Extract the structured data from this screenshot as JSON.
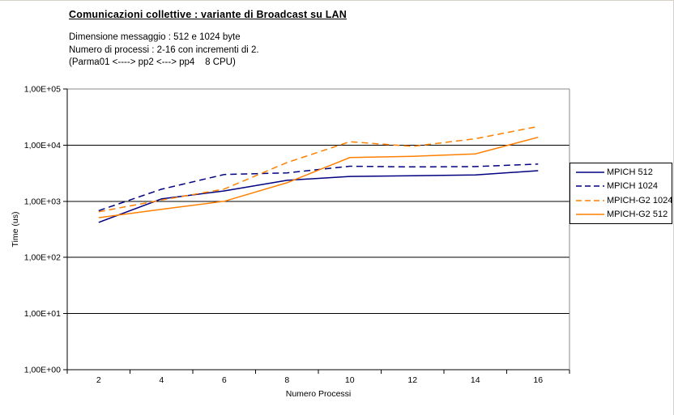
{
  "header": {
    "title": "Comunicazioni collettive : variante di Broadcast su LAN",
    "line1": "Dimensione messaggio : 512 e 1024 byte",
    "line2": "Numero di processi : 2-16 con incrementi di 2.",
    "line3": "(Parma01 <----> pp2 <---> pp4    8 CPU)"
  },
  "chart_data": {
    "type": "line",
    "title": "",
    "xlabel": "Numero Processi",
    "ylabel": "Time (us)",
    "y_scale": "log",
    "y_tick_labels": [
      "1,00E+00",
      "1,00E+01",
      "1,00E+02",
      "1,00E+03",
      "1,00E+04",
      "1,00E+05"
    ],
    "y_decade_range": [
      0,
      5
    ],
    "grid": "horizontal-only",
    "legend_position": "right",
    "categories": [
      2,
      4,
      6,
      8,
      10,
      12,
      14,
      16
    ],
    "series": [
      {
        "name": "MPICH 512",
        "color": "#000080",
        "style": "solid",
        "values": [
          420,
          1100,
          1530,
          2360,
          2770,
          2850,
          2950,
          3500
        ]
      },
      {
        "name": "MPICH 1024",
        "color": "#000080",
        "style": "dashed",
        "values": [
          680,
          1640,
          3000,
          3200,
          4200,
          4100,
          4150,
          4600
        ]
      },
      {
        "name": "MPICH-G2 1024",
        "color": "#ff8000",
        "style": "dashed",
        "values": [
          650,
          1050,
          1650,
          4900,
          11500,
          9500,
          13000,
          21500
        ]
      },
      {
        "name": "MPICH-G2 512",
        "color": "#ff8000",
        "style": "solid",
        "values": [
          510,
          720,
          1000,
          2140,
          6000,
          6300,
          7000,
          13800
        ]
      }
    ]
  }
}
